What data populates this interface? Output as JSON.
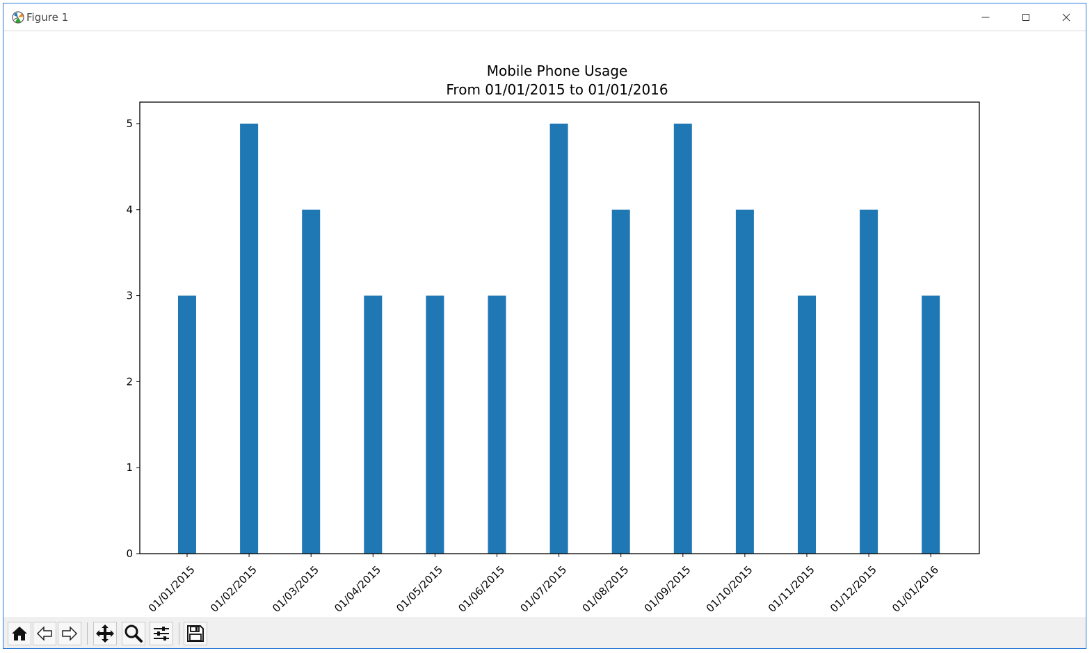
{
  "window": {
    "title": "Figure 1"
  },
  "toolbar": {
    "buttons": [
      {
        "icon": "home-icon"
      },
      {
        "icon": "back-arrow-icon"
      },
      {
        "icon": "forward-arrow-icon"
      },
      {
        "icon": "pan-icon"
      },
      {
        "icon": "zoom-icon"
      },
      {
        "icon": "configure-subplots-icon"
      },
      {
        "icon": "save-icon"
      }
    ]
  },
  "chart_data": {
    "type": "bar",
    "title": "Mobile Phone Usage\nFrom 01/01/2015 to 01/01/2016",
    "title_lines": [
      "Mobile Phone Usage",
      "From 01/01/2015 to 01/01/2016"
    ],
    "xlabel": "",
    "ylabel": "",
    "categories": [
      "01/01/2015",
      "01/02/2015",
      "01/03/2015",
      "01/04/2015",
      "01/05/2015",
      "01/06/2015",
      "01/07/2015",
      "01/08/2015",
      "01/09/2015",
      "01/10/2015",
      "01/11/2015",
      "01/12/2015",
      "01/01/2016"
    ],
    "values": [
      3,
      5,
      4,
      3,
      3,
      3,
      5,
      4,
      5,
      4,
      3,
      4,
      3
    ],
    "ylim": [
      0,
      5.25
    ],
    "yticks": [
      0,
      1,
      2,
      3,
      4,
      5
    ],
    "bar_color": "#1f77b4",
    "grid": false,
    "xtick_rotation_deg": 45
  }
}
